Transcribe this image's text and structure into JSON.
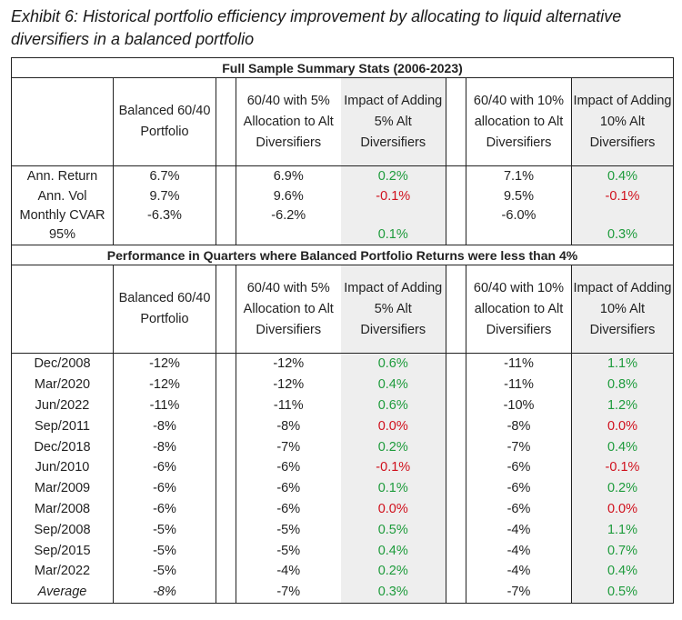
{
  "title": "Exhibit 6: Historical portfolio efficiency improvement by allocating to liquid alternative diversifiers in a balanced portfolio",
  "section1": {
    "heading": "Full Sample Summary Stats (2006-2023)",
    "headers": [
      "Balanced 60/40 Portfolio",
      "60/40 with 5% Allocation to Alt Diversifiers",
      "Impact of Adding 5% Alt Diversifiers",
      "60/40 with 10% allocation to Alt Diversifiers",
      "Impact of Adding 10% Alt Diversifiers"
    ],
    "rows": [
      {
        "label": "Ann. Return",
        "bal": "6.7%",
        "p5": "6.9%",
        "i5": "0.2%",
        "p10": "7.1%",
        "i10": "0.4%"
      },
      {
        "label": "Ann. Vol",
        "bal": "9.7%",
        "p5": "9.6%",
        "i5": "-0.1%",
        "p10": "9.5%",
        "i10": "-0.1%"
      },
      {
        "label": "Monthly CVAR 95%",
        "bal": "-6.3%",
        "p5": "-6.2%",
        "i5": "0.1%",
        "p10": "-6.0%",
        "i10": "0.3%"
      }
    ]
  },
  "section2": {
    "heading": "Performance in Quarters where Balanced Portfolio Returns were less than 4%",
    "headers": [
      "Balanced 60/40 Portfolio",
      "60/40 with 5% Allocation to Alt Diversifiers",
      "Impact of Adding 5% Alt Diversifiers",
      "60/40 with 10% allocation to Alt Diversifiers",
      "Impact of Adding 10% Alt Diversifiers"
    ],
    "rows": [
      {
        "label": "Dec/2008",
        "bal": "-12%",
        "p5": "-12%",
        "i5": "0.6%",
        "p10": "-11%",
        "i10": "1.1%"
      },
      {
        "label": "Mar/2020",
        "bal": "-12%",
        "p5": "-12%",
        "i5": "0.4%",
        "p10": "-11%",
        "i10": "0.8%"
      },
      {
        "label": "Jun/2022",
        "bal": "-11%",
        "p5": "-11%",
        "i5": "0.6%",
        "p10": "-10%",
        "i10": "1.2%"
      },
      {
        "label": "Sep/2011",
        "bal": "-8%",
        "p5": "-8%",
        "i5": "0.0%",
        "p10": "-8%",
        "i10": "0.0%"
      },
      {
        "label": "Dec/2018",
        "bal": "-8%",
        "p5": "-7%",
        "i5": "0.2%",
        "p10": "-7%",
        "i10": "0.4%"
      },
      {
        "label": "Jun/2010",
        "bal": "-6%",
        "p5": "-6%",
        "i5": "-0.1%",
        "p10": "-6%",
        "i10": "-0.1%"
      },
      {
        "label": "Mar/2009",
        "bal": "-6%",
        "p5": "-6%",
        "i5": "0.1%",
        "p10": "-6%",
        "i10": "0.2%"
      },
      {
        "label": "Mar/2008",
        "bal": "-6%",
        "p5": "-6%",
        "i5": "0.0%",
        "p10": "-6%",
        "i10": "0.0%"
      },
      {
        "label": "Sep/2008",
        "bal": "-5%",
        "p5": "-5%",
        "i5": "0.5%",
        "p10": "-4%",
        "i10": "1.1%"
      },
      {
        "label": "Sep/2015",
        "bal": "-5%",
        "p5": "-5%",
        "i5": "0.4%",
        "p10": "-4%",
        "i10": "0.7%"
      },
      {
        "label": "Mar/2022",
        "bal": "-5%",
        "p5": "-4%",
        "i5": "0.2%",
        "p10": "-4%",
        "i10": "0.4%"
      }
    ],
    "average": {
      "label": "Average",
      "bal": "-8%",
      "p5": "-7%",
      "i5": "0.3%",
      "p10": "-7%",
      "i10": "0.5%"
    }
  },
  "colors": {
    "positive": "#1e9b3c",
    "negative": "#d0101c",
    "impact_bg": "#eeeeee"
  }
}
